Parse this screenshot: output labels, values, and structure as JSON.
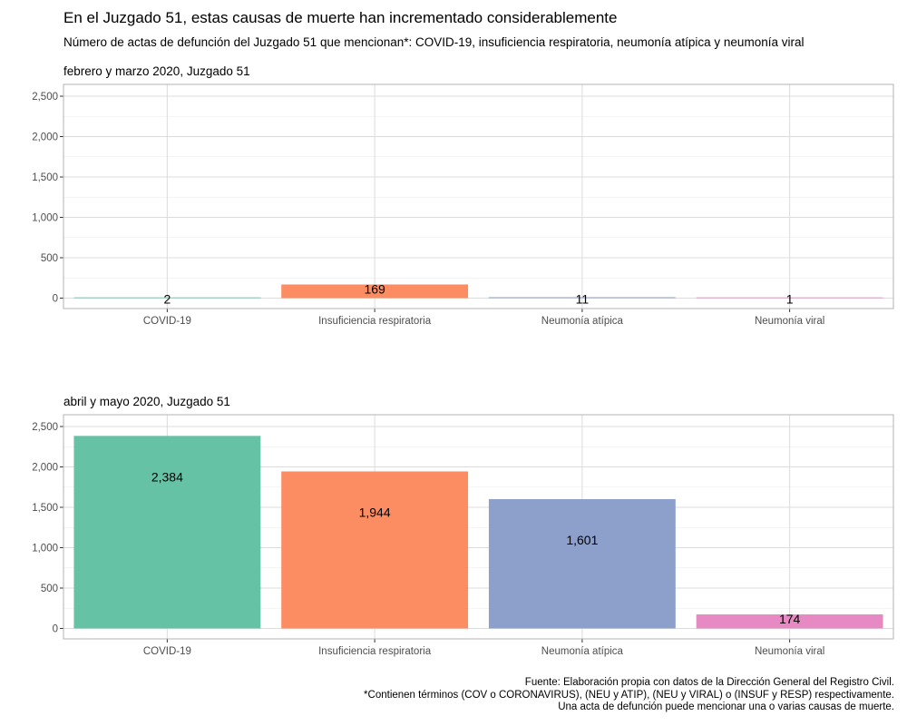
{
  "title": "En el Juzgado 51, estas causas de muerte han incrementado considerablemente",
  "subtitle": "Número de actas de defunción del Juzgado 51 que mencionan*: COVID-19, insuficiencia respiratoria, neumonía atípica y neumonía viral",
  "caption": [
    "Fuente: Elaboración propia con datos de la Dirección General del Registro Civil.",
    "*Contienen términos (COV o CORONAVIRUS), (NEU y ATIP), (NEU y VIRAL) o (INSUF y RESP) respectivamente.",
    "Una acta de defunción puede mencionar una o varias causas de muerte."
  ],
  "colors": {
    "COVID-19": "#66c2a5",
    "Insuficiencia respiratoria": "#fc8d62",
    "Neumonía atípica": "#8da0cb",
    "Neumonía viral": "#e78ac3",
    "grid": "#dcdcdc",
    "border": "#b3b3b3"
  },
  "chart_data": [
    {
      "type": "bar",
      "title": "febrero y marzo 2020, Juzgado 51",
      "categories": [
        "COVID-19",
        "Insuficiencia respiratoria",
        "Neumonía atípica",
        "Neumonía viral"
      ],
      "values": [
        2,
        169,
        11,
        1
      ],
      "labels": [
        "2",
        "169",
        "11",
        "1"
      ],
      "ylim": [
        0,
        2500
      ],
      "yticks": [
        0,
        500,
        1000,
        1500,
        2000,
        2500
      ],
      "ytick_labels": [
        "0",
        "500",
        "1,000",
        "1,500",
        "2,000",
        "2,500"
      ],
      "grid": true
    },
    {
      "type": "bar",
      "title": "abril y mayo 2020, Juzgado 51",
      "categories": [
        "COVID-19",
        "Insuficiencia respiratoria",
        "Neumonía atípica",
        "Neumonía viral"
      ],
      "values": [
        2384,
        1944,
        1601,
        174
      ],
      "labels": [
        "2,384",
        "1,944",
        "1,601",
        "174"
      ],
      "ylim": [
        0,
        2500
      ],
      "yticks": [
        0,
        500,
        1000,
        1500,
        2000,
        2500
      ],
      "ytick_labels": [
        "0",
        "500",
        "1,000",
        "1,500",
        "2,000",
        "2,500"
      ],
      "grid": true
    }
  ]
}
